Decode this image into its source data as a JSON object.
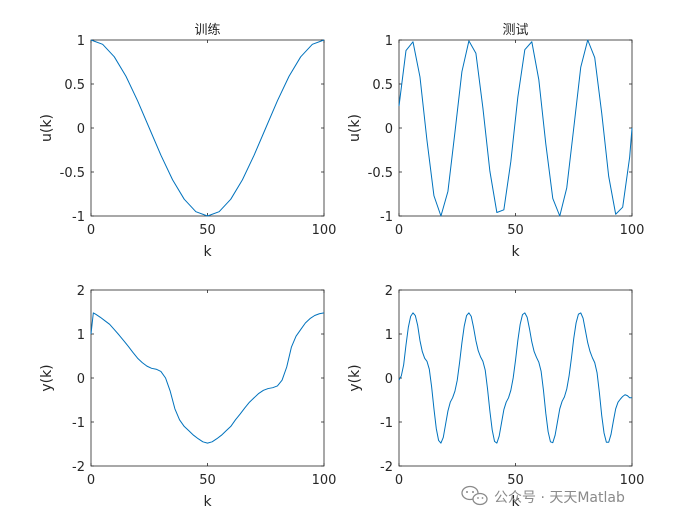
{
  "chart_data": [
    {
      "type": "line",
      "title": "训练",
      "xlabel": "k",
      "ylabel": "u(k)",
      "xlim": [
        0,
        100
      ],
      "ylim": [
        -1,
        1
      ],
      "xticks": [
        0,
        50,
        100
      ],
      "yticks": [
        -1,
        -0.5,
        0,
        0.5,
        1
      ],
      "ytick_labels": [
        "-1",
        "-0.5",
        "0",
        "0.5",
        "1"
      ],
      "grid": false,
      "series": [
        {
          "x": [
            0,
            5,
            10,
            15,
            20,
            25,
            30,
            35,
            40,
            45,
            50,
            55,
            60,
            65,
            70,
            75,
            80,
            85,
            90,
            95,
            100
          ],
          "y": [
            1,
            0.951,
            0.809,
            0.588,
            0.309,
            0,
            -0.309,
            -0.588,
            -0.809,
            -0.951,
            -1,
            -0.951,
            -0.809,
            -0.588,
            -0.309,
            0,
            0.309,
            0.588,
            0.809,
            0.951,
            1
          ]
        }
      ]
    },
    {
      "type": "line",
      "title": "测试",
      "xlabel": "k",
      "ylabel": "u(k)",
      "xlim": [
        0,
        100
      ],
      "ylim": [
        -1,
        1
      ],
      "xticks": [
        0,
        50,
        100
      ],
      "yticks": [
        -1,
        -0.5,
        0,
        0.5,
        1
      ],
      "ytick_labels": [
        "-1",
        "-0.5",
        "0",
        "0.5",
        "1"
      ],
      "grid": false,
      "series": [
        {
          "x": [
            0,
            3,
            6,
            9,
            12,
            15,
            18,
            21,
            24,
            27,
            30,
            33,
            36,
            39,
            42,
            45,
            48,
            51,
            54,
            57,
            60,
            63,
            66,
            69,
            72,
            75,
            78,
            81,
            84,
            87,
            90,
            93,
            96,
            99,
            100
          ],
          "y": [
            0.25,
            0.88,
            0.98,
            0.58,
            -0.14,
            -0.77,
            -1.0,
            -0.72,
            -0.05,
            0.64,
            0.99,
            0.85,
            0.23,
            -0.49,
            -0.96,
            -0.93,
            -0.38,
            0.35,
            0.89,
            0.98,
            0.55,
            -0.18,
            -0.8,
            -1.0,
            -0.68,
            0.0,
            0.69,
            1.0,
            0.8,
            0.17,
            -0.55,
            -0.98,
            -0.9,
            -0.33,
            0.0
          ]
        }
      ]
    },
    {
      "type": "line",
      "xlabel": "k",
      "ylabel": "y(k)",
      "xlim": [
        0,
        100
      ],
      "ylim": [
        -2,
        2
      ],
      "xticks": [
        0,
        50,
        100
      ],
      "yticks": [
        -2,
        -1,
        0,
        1,
        2
      ],
      "ytick_labels": [
        "-2",
        "-1",
        "0",
        "1",
        "2"
      ],
      "grid": false,
      "series": [
        {
          "x": [
            0,
            1,
            2,
            4,
            6,
            8,
            10,
            12,
            14,
            16,
            18,
            20,
            22,
            24,
            26,
            28,
            30,
            32,
            34,
            36,
            38,
            40,
            42,
            44,
            46,
            48,
            50,
            52,
            54,
            56,
            58,
            60,
            62,
            64,
            66,
            68,
            70,
            72,
            74,
            76,
            78,
            80,
            82,
            84,
            86,
            88,
            90,
            92,
            94,
            96,
            98,
            100
          ],
          "y": [
            1.0,
            1.48,
            1.45,
            1.38,
            1.3,
            1.22,
            1.1,
            0.98,
            0.85,
            0.72,
            0.58,
            0.45,
            0.35,
            0.27,
            0.22,
            0.2,
            0.15,
            0.0,
            -0.3,
            -0.7,
            -0.95,
            -1.1,
            -1.2,
            -1.3,
            -1.38,
            -1.45,
            -1.48,
            -1.45,
            -1.38,
            -1.3,
            -1.2,
            -1.1,
            -0.95,
            -0.82,
            -0.68,
            -0.55,
            -0.45,
            -0.35,
            -0.28,
            -0.24,
            -0.22,
            -0.18,
            -0.05,
            0.25,
            0.7,
            0.95,
            1.1,
            1.25,
            1.35,
            1.42,
            1.46,
            1.48
          ]
        }
      ]
    },
    {
      "type": "line",
      "xlabel": "k",
      "ylabel": "y(k)",
      "xlim": [
        0,
        100
      ],
      "ylim": [
        -2,
        2
      ],
      "xticks": [
        0,
        50,
        100
      ],
      "yticks": [
        -2,
        -1,
        0,
        1,
        2
      ],
      "ytick_labels": [
        "-2",
        "-1",
        "0",
        "1",
        "2"
      ],
      "grid": false,
      "series": [
        {
          "x": [
            0,
            1,
            2,
            3,
            4,
            5,
            6,
            7,
            8,
            9,
            10,
            11,
            12,
            13,
            14,
            15,
            16,
            17,
            18,
            19,
            20,
            21,
            22,
            23,
            24,
            25,
            26,
            27,
            28,
            29,
            30,
            31,
            32,
            33,
            34,
            35,
            36,
            37,
            38,
            39,
            40,
            41,
            42,
            43,
            44,
            45,
            46,
            47,
            48,
            49,
            50,
            51,
            52,
            53,
            54,
            55,
            56,
            57,
            58,
            59,
            60,
            61,
            62,
            63,
            64,
            65,
            66,
            67,
            68,
            69,
            70,
            71,
            72,
            73,
            74,
            75,
            76,
            77,
            78,
            79,
            80,
            81,
            82,
            83,
            84,
            85,
            86,
            87,
            88,
            89,
            90,
            91,
            92,
            93,
            94,
            95,
            96,
            97,
            98,
            99,
            100
          ],
          "y": [
            -0.05,
            0.05,
            0.3,
            0.75,
            1.15,
            1.4,
            1.48,
            1.42,
            1.2,
            0.85,
            0.6,
            0.45,
            0.38,
            0.2,
            -0.2,
            -0.7,
            -1.15,
            -1.42,
            -1.48,
            -1.35,
            -1.05,
            -0.75,
            -0.55,
            -0.45,
            -0.3,
            -0.05,
            0.35,
            0.8,
            1.18,
            1.42,
            1.48,
            1.4,
            1.15,
            0.85,
            0.62,
            0.48,
            0.38,
            0.18,
            -0.25,
            -0.75,
            -1.18,
            -1.44,
            -1.48,
            -1.32,
            -1.02,
            -0.72,
            -0.55,
            -0.45,
            -0.28,
            0.0,
            0.4,
            0.85,
            1.22,
            1.44,
            1.48,
            1.38,
            1.12,
            0.82,
            0.6,
            0.47,
            0.36,
            0.15,
            -0.28,
            -0.8,
            -1.22,
            -1.45,
            -1.47,
            -1.3,
            -1.0,
            -0.7,
            -0.53,
            -0.43,
            -0.25,
            0.05,
            0.45,
            0.9,
            1.25,
            1.45,
            1.48,
            1.36,
            1.08,
            0.8,
            0.6,
            0.46,
            0.35,
            0.12,
            -0.33,
            -0.85,
            -1.25,
            -1.46,
            -1.46,
            -1.28,
            -0.98,
            -0.7,
            -0.55,
            -0.48,
            -0.42,
            -0.38,
            -0.4,
            -0.45,
            -0.45
          ]
        }
      ]
    }
  ],
  "watermark": "公众号 · 天天Matlab",
  "colors": {
    "line": "#0072bd",
    "axes": "#262626",
    "background": "#ffffff"
  }
}
